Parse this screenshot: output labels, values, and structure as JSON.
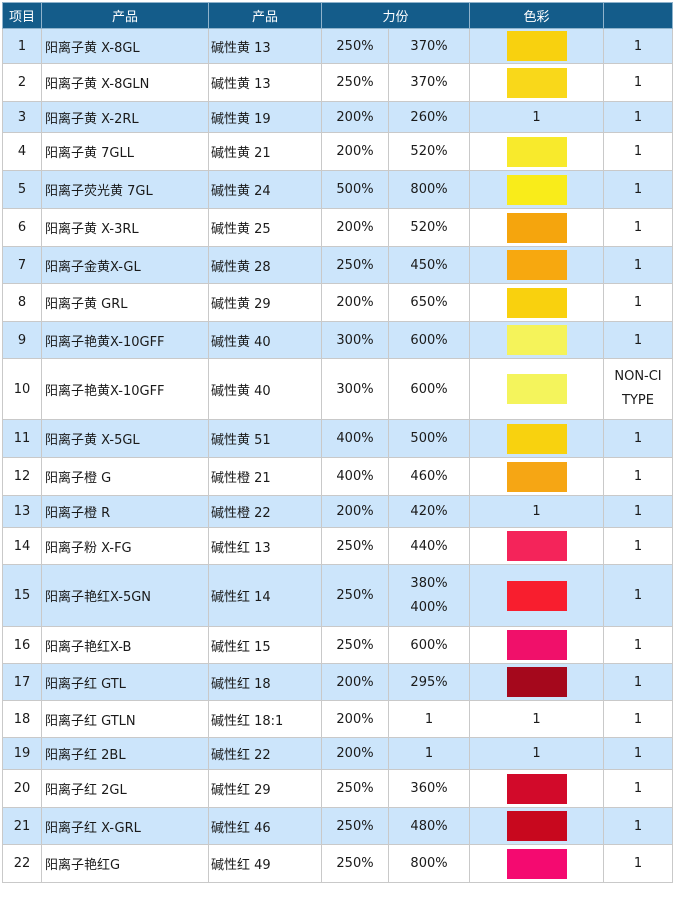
{
  "header": {
    "col_index": "项目",
    "col_product": "产品",
    "col_basic": "产品",
    "col_strength": "力份",
    "col_color": "色彩",
    "col_last": ""
  },
  "rows": [
    {
      "no": "1",
      "name": "阳离子黄 X-8GL",
      "basic": "碱性黄 13",
      "s1": "250%",
      "s2": [
        "370%"
      ],
      "swatch": "#f8d10f",
      "swatch_text": "",
      "last": [
        "1"
      ]
    },
    {
      "no": "2",
      "name": "阳离子黄 X-8GLN",
      "basic": "碱性黄 13",
      "s1": "250%",
      "s2": [
        "370%"
      ],
      "swatch": "#f9d81a",
      "swatch_text": "",
      "last": [
        "1"
      ]
    },
    {
      "no": "3",
      "name": "阳离子黄 X-2RL",
      "basic": "碱性黄 19",
      "s1": "200%",
      "s2": [
        "260%"
      ],
      "swatch": "",
      "swatch_text": "1",
      "last": [
        "1"
      ]
    },
    {
      "no": "4",
      "name": "阳离子黄 7GLL",
      "basic": "碱性黄 21",
      "s1": "200%",
      "s2": [
        "520%"
      ],
      "swatch": "#f8ea2c",
      "swatch_text": "",
      "last": [
        "1"
      ]
    },
    {
      "no": "5",
      "name": "阳离子荧光黄 7GL",
      "basic": "碱性黄 24",
      "s1": "500%",
      "s2": [
        "800%"
      ],
      "swatch": "#f9ec1a",
      "swatch_text": "",
      "last": [
        "1"
      ]
    },
    {
      "no": "6",
      "name": "阳离子黄 X-3RL",
      "basic": "碱性黄 25",
      "s1": "200%",
      "s2": [
        "520%"
      ],
      "swatch": "#f5a50d",
      "swatch_text": "",
      "last": [
        "1"
      ]
    },
    {
      "no": "7",
      "name": "阳离子金黄X-GL",
      "basic": "碱性黄 28",
      "s1": "250%",
      "s2": [
        "450%"
      ],
      "swatch": "#f7a80f",
      "swatch_text": "",
      "last": [
        "1"
      ]
    },
    {
      "no": "8",
      "name": "阳离子黄 GRL",
      "basic": "碱性黄 29",
      "s1": "200%",
      "s2": [
        "650%"
      ],
      "swatch": "#f9d10e",
      "swatch_text": "",
      "last": [
        "1"
      ]
    },
    {
      "no": "9",
      "name": "阳离子艳黄X-10GFF",
      "basic": "碱性黄 40",
      "s1": "300%",
      "s2": [
        "600%"
      ],
      "swatch": "#f5f35a",
      "swatch_text": "",
      "last": [
        "1"
      ]
    },
    {
      "no": "10",
      "name": "阳离子艳黄X-10GFF",
      "basic": "碱性黄 40",
      "s1": "300%",
      "s2": [
        "600%"
      ],
      "swatch": "#f4f45c",
      "swatch_text": "",
      "last": [
        "NON-CI",
        "TYPE"
      ]
    },
    {
      "no": "11",
      "name": "阳离子黄 X-5GL",
      "basic": "碱性黄 51",
      "s1": "400%",
      "s2": [
        "500%"
      ],
      "swatch": "#f8d20f",
      "swatch_text": "",
      "last": [
        "1"
      ]
    },
    {
      "no": "12",
      "name": "阳离子橙 G",
      "basic": "碱性橙 21",
      "s1": "400%",
      "s2": [
        "460%"
      ],
      "swatch": "#f6a614",
      "swatch_text": "",
      "last": [
        "1"
      ]
    },
    {
      "no": "13",
      "name": "阳离子橙 R",
      "basic": "碱性橙 22",
      "s1": "200%",
      "s2": [
        "420%"
      ],
      "swatch": "",
      "swatch_text": "1",
      "last": [
        "1"
      ]
    },
    {
      "no": "14",
      "name": "阳离子粉 X-FG",
      "basic": "碱性红 13",
      "s1": "250%",
      "s2": [
        "440%"
      ],
      "swatch": "#f4245a",
      "swatch_text": "",
      "last": [
        "1"
      ]
    },
    {
      "no": "15",
      "name": "阳离子艳红X-5GN",
      "basic": "碱性红 14",
      "s1": "250%",
      "s2": [
        "380%",
        "400%"
      ],
      "swatch": "#f81e2e",
      "swatch_text": "",
      "last": [
        "1"
      ]
    },
    {
      "no": "16",
      "name": "阳离子艳红X-B",
      "basic": "碱性红 15",
      "s1": "250%",
      "s2": [
        "600%"
      ],
      "swatch": "#f0106a",
      "swatch_text": "",
      "last": [
        "1"
      ]
    },
    {
      "no": "17",
      "name": "阳离子红 GTL",
      "basic": "碱性红 18",
      "s1": "200%",
      "s2": [
        "295%"
      ],
      "swatch": "#a5081c",
      "swatch_text": "",
      "last": [
        "1"
      ]
    },
    {
      "no": "18",
      "name": "阳离子红 GTLN",
      "basic": "碱性红 18:1",
      "s1": "200%",
      "s2": [
        "1"
      ],
      "swatch": "",
      "swatch_text": "1",
      "last": [
        "1"
      ]
    },
    {
      "no": "19",
      "name": "阳离子红 2BL",
      "basic": "碱性红 22",
      "s1": "200%",
      "s2": [
        "1"
      ],
      "swatch": "",
      "swatch_text": "1",
      "last": [
        "1"
      ]
    },
    {
      "no": "20",
      "name": "阳离子红 2GL",
      "basic": "碱性红 29",
      "s1": "250%",
      "s2": [
        "360%"
      ],
      "swatch": "#d20a2a",
      "swatch_text": "",
      "last": [
        "1"
      ]
    },
    {
      "no": "21",
      "name": "阳离子红 X-GRL",
      "basic": "碱性红 46",
      "s1": "250%",
      "s2": [
        "480%"
      ],
      "swatch": "#c8081e",
      "swatch_text": "",
      "last": [
        "1"
      ]
    },
    {
      "no": "22",
      "name": "阳离子艳红G",
      "basic": "碱性红 49",
      "s1": "250%",
      "s2": [
        "800%"
      ],
      "swatch": "#f40a70",
      "swatch_text": "",
      "last": [
        "1"
      ]
    }
  ]
}
